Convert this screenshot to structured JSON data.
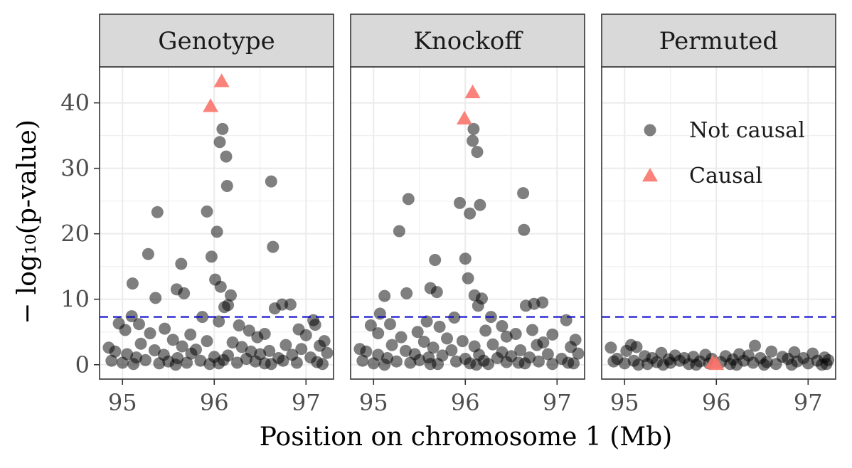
{
  "chart_data": {
    "type": "scatter",
    "xlabel": "Position on chromosome 1 (Mb)",
    "ylabel": "− log₁₀(p-value)",
    "xlim": [
      94.75,
      97.3
    ],
    "ylim": [
      -2.2,
      45.5
    ],
    "x_ticks": [
      95,
      96,
      97
    ],
    "y_ticks": [
      0,
      10,
      20,
      30,
      40
    ],
    "threshold": {
      "value": 7.3,
      "color": "#0000cc",
      "style": "dashed"
    },
    "grid": true,
    "legend": {
      "placement": "inside-top-right-of-third-panel",
      "entries": [
        {
          "label": "Not causal",
          "shape": "circle",
          "color": "#000000"
        },
        {
          "label": "Causal",
          "shape": "triangle",
          "color": "#f8766d"
        }
      ]
    },
    "panels": [
      {
        "title": "Genotype",
        "causal": [
          {
            "x": 96.08,
            "y": 43.3
          },
          {
            "x": 95.96,
            "y": 39.5
          }
        ],
        "points": [
          {
            "x": 96.09,
            "y": 36.0
          },
          {
            "x": 96.06,
            "y": 34.0
          },
          {
            "x": 96.13,
            "y": 31.8
          },
          {
            "x": 96.62,
            "y": 28.0
          },
          {
            "x": 96.14,
            "y": 27.3
          },
          {
            "x": 95.38,
            "y": 23.3
          },
          {
            "x": 95.92,
            "y": 23.4
          },
          {
            "x": 96.03,
            "y": 20.3
          },
          {
            "x": 96.64,
            "y": 18.0
          },
          {
            "x": 95.28,
            "y": 16.9
          },
          {
            "x": 95.97,
            "y": 16.5
          },
          {
            "x": 95.64,
            "y": 15.4
          },
          {
            "x": 96.01,
            "y": 13.0
          },
          {
            "x": 95.11,
            "y": 12.4
          },
          {
            "x": 96.07,
            "y": 11.9
          },
          {
            "x": 95.59,
            "y": 11.5
          },
          {
            "x": 95.67,
            "y": 10.9
          },
          {
            "x": 96.18,
            "y": 10.6
          },
          {
            "x": 95.36,
            "y": 10.2
          },
          {
            "x": 96.74,
            "y": 9.2
          },
          {
            "x": 96.83,
            "y": 9.2
          },
          {
            "x": 96.15,
            "y": 9.1
          },
          {
            "x": 96.11,
            "y": 8.8
          },
          {
            "x": 96.66,
            "y": 8.6
          },
          {
            "x": 95.1,
            "y": 7.4
          },
          {
            "x": 95.87,
            "y": 7.3
          },
          {
            "x": 97.08,
            "y": 6.8
          },
          {
            "x": 96.05,
            "y": 6.6
          },
          {
            "x": 94.96,
            "y": 6.3
          },
          {
            "x": 95.18,
            "y": 6.2
          },
          {
            "x": 96.27,
            "y": 6.0
          },
          {
            "x": 97.1,
            "y": 6.1
          },
          {
            "x": 95.03,
            "y": 5.3
          },
          {
            "x": 95.46,
            "y": 5.5
          },
          {
            "x": 96.38,
            "y": 5.2
          },
          {
            "x": 96.92,
            "y": 5.4
          },
          {
            "x": 95.74,
            "y": 4.6
          },
          {
            "x": 96.55,
            "y": 4.7
          },
          {
            "x": 95.3,
            "y": 4.8
          },
          {
            "x": 97.0,
            "y": 4.5
          },
          {
            "x": 96.47,
            "y": 4.2
          },
          {
            "x": 95.55,
            "y": 3.8
          },
          {
            "x": 95.92,
            "y": 3.6
          },
          {
            "x": 97.2,
            "y": 3.6
          },
          {
            "x": 95.2,
            "y": 3.2
          },
          {
            "x": 96.2,
            "y": 3.4
          },
          {
            "x": 96.78,
            "y": 3.0
          },
          {
            "x": 94.85,
            "y": 2.6
          },
          {
            "x": 95.65,
            "y": 2.8
          },
          {
            "x": 96.3,
            "y": 2.7
          },
          {
            "x": 96.95,
            "y": 2.4
          },
          {
            "x": 97.15,
            "y": 2.9
          },
          {
            "x": 94.92,
            "y": 2.0
          },
          {
            "x": 95.35,
            "y": 2.2
          },
          {
            "x": 95.8,
            "y": 2.3
          },
          {
            "x": 96.4,
            "y": 2.0
          },
          {
            "x": 96.6,
            "y": 2.1
          },
          {
            "x": 97.23,
            "y": 1.8
          },
          {
            "x": 95.05,
            "y": 1.6
          },
          {
            "x": 95.45,
            "y": 1.5
          },
          {
            "x": 95.75,
            "y": 1.7
          },
          {
            "x": 96.15,
            "y": 1.4
          },
          {
            "x": 96.5,
            "y": 1.6
          },
          {
            "x": 96.85,
            "y": 1.5
          },
          {
            "x": 95.15,
            "y": 1.1
          },
          {
            "x": 95.6,
            "y": 1.0
          },
          {
            "x": 96.0,
            "y": 1.2
          },
          {
            "x": 96.35,
            "y": 0.9
          },
          {
            "x": 96.7,
            "y": 1.0
          },
          {
            "x": 97.05,
            "y": 1.1
          },
          {
            "x": 94.88,
            "y": 0.6
          },
          {
            "x": 95.25,
            "y": 0.7
          },
          {
            "x": 95.5,
            "y": 0.5
          },
          {
            "x": 95.85,
            "y": 0.6
          },
          {
            "x": 96.1,
            "y": 0.7
          },
          {
            "x": 96.45,
            "y": 0.5
          },
          {
            "x": 96.75,
            "y": 0.6
          },
          {
            "x": 97.12,
            "y": 0.4
          },
          {
            "x": 95.0,
            "y": 0.3
          },
          {
            "x": 95.4,
            "y": 0.2
          },
          {
            "x": 95.7,
            "y": 0.3
          },
          {
            "x": 95.95,
            "y": 0.1
          },
          {
            "x": 96.25,
            "y": 0.3
          },
          {
            "x": 96.55,
            "y": 0.2
          },
          {
            "x": 96.9,
            "y": 0.3
          },
          {
            "x": 97.18,
            "y": 0.1
          },
          {
            "x": 95.12,
            "y": 0.1
          },
          {
            "x": 95.58,
            "y": 0.0
          },
          {
            "x": 96.05,
            "y": 0.2
          },
          {
            "x": 96.62,
            "y": 0.1
          }
        ]
      },
      {
        "title": "Knockoff",
        "causal": [
          {
            "x": 96.08,
            "y": 41.6
          },
          {
            "x": 95.99,
            "y": 37.6
          }
        ],
        "points": [
          {
            "x": 96.09,
            "y": 36.0
          },
          {
            "x": 96.08,
            "y": 34.2
          },
          {
            "x": 96.13,
            "y": 32.5
          },
          {
            "x": 96.63,
            "y": 26.2
          },
          {
            "x": 95.38,
            "y": 25.3
          },
          {
            "x": 95.94,
            "y": 24.7
          },
          {
            "x": 96.16,
            "y": 24.4
          },
          {
            "x": 96.05,
            "y": 23.1
          },
          {
            "x": 95.28,
            "y": 20.4
          },
          {
            "x": 96.64,
            "y": 20.6
          },
          {
            "x": 96.0,
            "y": 16.2
          },
          {
            "x": 95.67,
            "y": 16.0
          },
          {
            "x": 96.03,
            "y": 13.2
          },
          {
            "x": 95.62,
            "y": 11.7
          },
          {
            "x": 95.69,
            "y": 11.1
          },
          {
            "x": 95.36,
            "y": 10.9
          },
          {
            "x": 96.1,
            "y": 10.6
          },
          {
            "x": 95.12,
            "y": 10.5
          },
          {
            "x": 96.18,
            "y": 10.1
          },
          {
            "x": 96.84,
            "y": 9.5
          },
          {
            "x": 96.75,
            "y": 9.3
          },
          {
            "x": 96.14,
            "y": 9.0
          },
          {
            "x": 96.66,
            "y": 9.0
          },
          {
            "x": 95.07,
            "y": 7.8
          },
          {
            "x": 95.88,
            "y": 7.2
          },
          {
            "x": 96.28,
            "y": 7.3
          },
          {
            "x": 97.1,
            "y": 6.8
          },
          {
            "x": 95.58,
            "y": 6.6
          },
          {
            "x": 94.97,
            "y": 6.0
          },
          {
            "x": 95.18,
            "y": 6.2
          },
          {
            "x": 95.72,
            "y": 5.8
          },
          {
            "x": 96.4,
            "y": 5.9
          },
          {
            "x": 96.22,
            "y": 5.2
          },
          {
            "x": 96.73,
            "y": 5.3
          },
          {
            "x": 95.05,
            "y": 4.8
          },
          {
            "x": 95.48,
            "y": 5.0
          },
          {
            "x": 96.55,
            "y": 4.7
          },
          {
            "x": 96.95,
            "y": 4.6
          },
          {
            "x": 95.3,
            "y": 4.2
          },
          {
            "x": 95.8,
            "y": 4.0
          },
          {
            "x": 96.45,
            "y": 4.3
          },
          {
            "x": 97.2,
            "y": 3.8
          },
          {
            "x": 95.55,
            "y": 3.5
          },
          {
            "x": 95.97,
            "y": 3.6
          },
          {
            "x": 96.85,
            "y": 3.4
          },
          {
            "x": 95.2,
            "y": 3.0
          },
          {
            "x": 96.3,
            "y": 3.1
          },
          {
            "x": 96.78,
            "y": 3.0
          },
          {
            "x": 94.85,
            "y": 2.4
          },
          {
            "x": 95.65,
            "y": 2.6
          },
          {
            "x": 96.1,
            "y": 2.8
          },
          {
            "x": 97.15,
            "y": 2.7
          },
          {
            "x": 94.92,
            "y": 2.0
          },
          {
            "x": 95.35,
            "y": 2.1
          },
          {
            "x": 95.85,
            "y": 2.2
          },
          {
            "x": 96.4,
            "y": 1.9
          },
          {
            "x": 96.6,
            "y": 2.2
          },
          {
            "x": 97.23,
            "y": 1.7
          },
          {
            "x": 95.05,
            "y": 1.5
          },
          {
            "x": 95.45,
            "y": 1.6
          },
          {
            "x": 95.75,
            "y": 1.4
          },
          {
            "x": 96.15,
            "y": 1.5
          },
          {
            "x": 96.5,
            "y": 1.3
          },
          {
            "x": 96.9,
            "y": 1.6
          },
          {
            "x": 95.15,
            "y": 1.0
          },
          {
            "x": 95.6,
            "y": 1.1
          },
          {
            "x": 96.0,
            "y": 0.9
          },
          {
            "x": 96.35,
            "y": 1.0
          },
          {
            "x": 96.7,
            "y": 1.1
          },
          {
            "x": 97.05,
            "y": 0.9
          },
          {
            "x": 94.88,
            "y": 0.6
          },
          {
            "x": 95.25,
            "y": 0.5
          },
          {
            "x": 95.5,
            "y": 0.7
          },
          {
            "x": 95.9,
            "y": 0.5
          },
          {
            "x": 96.2,
            "y": 0.6
          },
          {
            "x": 96.45,
            "y": 0.4
          },
          {
            "x": 96.8,
            "y": 0.5
          },
          {
            "x": 97.12,
            "y": 0.3
          },
          {
            "x": 95.0,
            "y": 0.2
          },
          {
            "x": 95.4,
            "y": 0.3
          },
          {
            "x": 95.7,
            "y": 0.1
          },
          {
            "x": 96.05,
            "y": 0.2
          },
          {
            "x": 96.25,
            "y": 0.1
          },
          {
            "x": 96.58,
            "y": 0.3
          },
          {
            "x": 96.95,
            "y": 0.1
          },
          {
            "x": 97.18,
            "y": 0.2
          },
          {
            "x": 95.12,
            "y": 0.0
          },
          {
            "x": 95.62,
            "y": 0.1
          },
          {
            "x": 96.12,
            "y": 0.0
          },
          {
            "x": 96.65,
            "y": 0.2
          }
        ]
      },
      {
        "title": "Permuted",
        "causal": [
          {
            "x": 95.96,
            "y": 0.3
          },
          {
            "x": 96.0,
            "y": 0.1
          }
        ],
        "points": [
          {
            "x": 94.85,
            "y": 2.6
          },
          {
            "x": 95.07,
            "y": 3.0
          },
          {
            "x": 95.13,
            "y": 2.7
          },
          {
            "x": 96.42,
            "y": 2.9
          },
          {
            "x": 95.02,
            "y": 2.1
          },
          {
            "x": 95.4,
            "y": 1.8
          },
          {
            "x": 95.88,
            "y": 1.5
          },
          {
            "x": 96.25,
            "y": 1.6
          },
          {
            "x": 96.6,
            "y": 2.0
          },
          {
            "x": 96.85,
            "y": 1.9
          },
          {
            "x": 97.05,
            "y": 1.7
          },
          {
            "x": 95.22,
            "y": 1.3
          },
          {
            "x": 95.55,
            "y": 1.4
          },
          {
            "x": 95.75,
            "y": 1.2
          },
          {
            "x": 96.1,
            "y": 1.3
          },
          {
            "x": 96.35,
            "y": 1.4
          },
          {
            "x": 96.72,
            "y": 1.2
          },
          {
            "x": 97.18,
            "y": 1.1
          },
          {
            "x": 94.92,
            "y": 0.9
          },
          {
            "x": 95.3,
            "y": 1.0
          },
          {
            "x": 95.48,
            "y": 0.8
          },
          {
            "x": 95.65,
            "y": 1.0
          },
          {
            "x": 95.95,
            "y": 0.9
          },
          {
            "x": 96.18,
            "y": 0.8
          },
          {
            "x": 96.48,
            "y": 1.0
          },
          {
            "x": 96.78,
            "y": 0.9
          },
          {
            "x": 96.95,
            "y": 1.0
          },
          {
            "x": 97.22,
            "y": 0.7
          },
          {
            "x": 94.88,
            "y": 0.5
          },
          {
            "x": 95.1,
            "y": 0.6
          },
          {
            "x": 95.35,
            "y": 0.4
          },
          {
            "x": 95.6,
            "y": 0.6
          },
          {
            "x": 95.82,
            "y": 0.5
          },
          {
            "x": 96.05,
            "y": 0.4
          },
          {
            "x": 96.3,
            "y": 0.6
          },
          {
            "x": 96.55,
            "y": 0.4
          },
          {
            "x": 96.88,
            "y": 0.5
          },
          {
            "x": 97.1,
            "y": 0.6
          },
          {
            "x": 95.0,
            "y": 0.2
          },
          {
            "x": 95.25,
            "y": 0.1
          },
          {
            "x": 95.5,
            "y": 0.3
          },
          {
            "x": 95.7,
            "y": 0.1
          },
          {
            "x": 95.92,
            "y": 0.2
          },
          {
            "x": 96.15,
            "y": 0.1
          },
          {
            "x": 96.4,
            "y": 0.3
          },
          {
            "x": 96.65,
            "y": 0.1
          },
          {
            "x": 97.0,
            "y": 0.2
          },
          {
            "x": 97.2,
            "y": 0.1
          },
          {
            "x": 95.15,
            "y": 0.0
          },
          {
            "x": 95.42,
            "y": 0.0
          },
          {
            "x": 95.78,
            "y": 0.0
          },
          {
            "x": 96.22,
            "y": 0.0
          },
          {
            "x": 96.52,
            "y": 0.0
          },
          {
            "x": 96.82,
            "y": 0.0
          },
          {
            "x": 97.15,
            "y": 0.0
          }
        ]
      }
    ]
  }
}
